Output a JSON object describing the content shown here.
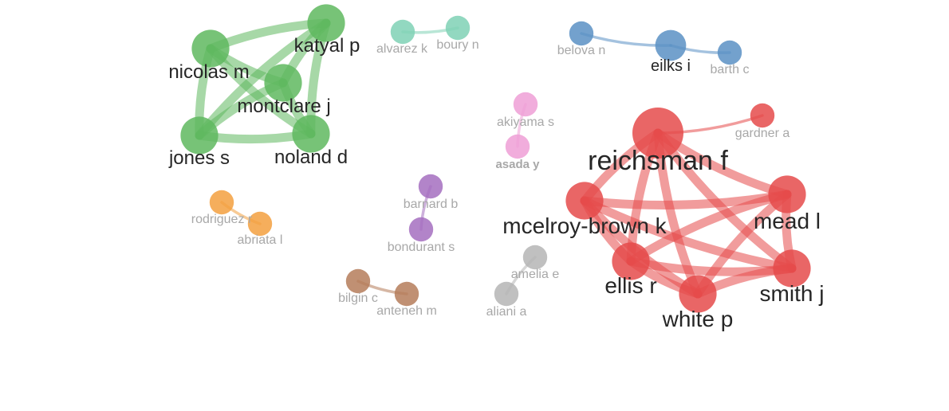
{
  "clusters": [
    {
      "id": "green",
      "color": "#5fb85f",
      "nodes": [
        {
          "id": "katyal",
          "label": "katyal p",
          "weight": 3
        },
        {
          "id": "nicolas",
          "label": "nicolas m",
          "weight": 3
        },
        {
          "id": "montclare",
          "label": "montclare j",
          "weight": 3
        },
        {
          "id": "jones",
          "label": "jones s",
          "weight": 3
        },
        {
          "id": "noland",
          "label": "noland d",
          "weight": 3
        }
      ],
      "links": [
        [
          "katyal",
          "nicolas"
        ],
        [
          "katyal",
          "montclare"
        ],
        [
          "katyal",
          "jones"
        ],
        [
          "katyal",
          "noland"
        ],
        [
          "nicolas",
          "montclare"
        ],
        [
          "nicolas",
          "jones"
        ],
        [
          "nicolas",
          "noland"
        ],
        [
          "montclare",
          "jones"
        ],
        [
          "montclare",
          "noland"
        ],
        [
          "jones",
          "noland"
        ]
      ]
    },
    {
      "id": "teal",
      "color": "#7fd1b5",
      "nodes": [
        {
          "id": "alvarez",
          "label": "alvarez k",
          "weight": 1
        },
        {
          "id": "boury",
          "label": "boury n",
          "weight": 1
        }
      ],
      "links": [
        [
          "alvarez",
          "boury"
        ]
      ]
    },
    {
      "id": "blue",
      "color": "#5a90c4",
      "nodes": [
        {
          "id": "belova",
          "label": "belova n",
          "weight": 1
        },
        {
          "id": "eilks",
          "label": "eilks i",
          "weight": 2
        },
        {
          "id": "barth",
          "label": "barth c",
          "weight": 1
        }
      ],
      "links": [
        [
          "belova",
          "eilks"
        ],
        [
          "eilks",
          "barth"
        ]
      ]
    },
    {
      "id": "pink",
      "color": "#ef9fd6",
      "nodes": [
        {
          "id": "akiyama",
          "label": "akiyama s",
          "weight": 1
        },
        {
          "id": "asada",
          "label": "asada y",
          "weight": 1
        }
      ],
      "links": [
        [
          "akiyama",
          "asada"
        ]
      ]
    },
    {
      "id": "red",
      "color": "#e54b4b",
      "nodes": [
        {
          "id": "reichsman",
          "label": "reichsman f",
          "weight": 5
        },
        {
          "id": "gardner",
          "label": "gardner a",
          "weight": 1
        },
        {
          "id": "mcelroy",
          "label": "mcelroy-brown k",
          "weight": 3
        },
        {
          "id": "mead",
          "label": "mead l",
          "weight": 3
        },
        {
          "id": "ellis",
          "label": "ellis r",
          "weight": 3
        },
        {
          "id": "smith",
          "label": "smith j",
          "weight": 3
        },
        {
          "id": "white",
          "label": "white p",
          "weight": 3
        }
      ],
      "links": [
        [
          "reichsman",
          "gardner"
        ],
        [
          "reichsman",
          "mcelroy"
        ],
        [
          "reichsman",
          "mead"
        ],
        [
          "reichsman",
          "ellis"
        ],
        [
          "reichsman",
          "smith"
        ],
        [
          "reichsman",
          "white"
        ],
        [
          "mcelroy",
          "mead"
        ],
        [
          "mcelroy",
          "ellis"
        ],
        [
          "mcelroy",
          "smith"
        ],
        [
          "mcelroy",
          "white"
        ],
        [
          "mead",
          "ellis"
        ],
        [
          "mead",
          "smith"
        ],
        [
          "mead",
          "white"
        ],
        [
          "ellis",
          "smith"
        ],
        [
          "ellis",
          "white"
        ],
        [
          "smith",
          "white"
        ]
      ]
    },
    {
      "id": "orange",
      "color": "#f3a040",
      "nodes": [
        {
          "id": "rodriguez",
          "label": "rodriguez r",
          "weight": 1
        },
        {
          "id": "abriata",
          "label": "abriata l",
          "weight": 1
        }
      ],
      "links": [
        [
          "rodriguez",
          "abriata"
        ]
      ]
    },
    {
      "id": "purple",
      "color": "#a46fc0",
      "nodes": [
        {
          "id": "barnard",
          "label": "barnard b",
          "weight": 1
        },
        {
          "id": "bondurant",
          "label": "bondurant s",
          "weight": 1
        }
      ],
      "links": [
        [
          "barnard",
          "bondurant"
        ]
      ]
    },
    {
      "id": "brown",
      "color": "#b57c5a",
      "nodes": [
        {
          "id": "bilgin",
          "label": "bilgin c",
          "weight": 1
        },
        {
          "id": "anteneh",
          "label": "anteneh m",
          "weight": 1
        }
      ],
      "links": [
        [
          "bilgin",
          "anteneh"
        ]
      ]
    },
    {
      "id": "gray",
      "color": "#b5b5b5",
      "nodes": [
        {
          "id": "amelia",
          "label": "amelia e",
          "weight": 1
        },
        {
          "id": "aliani",
          "label": "aliani a",
          "weight": 1
        }
      ],
      "links": [
        [
          "amelia",
          "aliani"
        ]
      ]
    }
  ]
}
